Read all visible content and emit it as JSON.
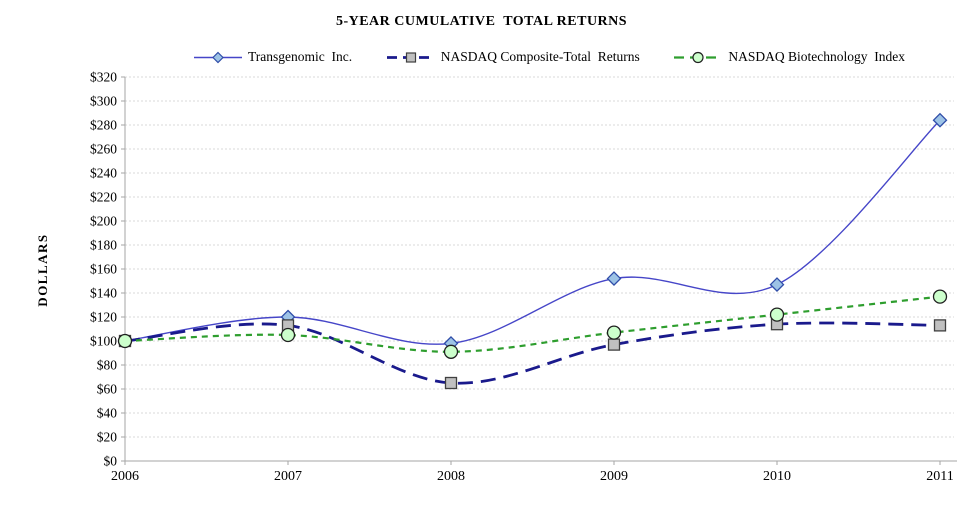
{
  "chart_data": {
    "type": "line",
    "title": "5-YEAR CUMULATIVE  TOTAL RETURNS",
    "ylabel": "DOLLARS",
    "xlabel": "",
    "categories": [
      "2006",
      "2007",
      "2008",
      "2009",
      "2010",
      "2011"
    ],
    "y_ticks": [
      "$0",
      "$20",
      "$40",
      "$60",
      "$80",
      "$100",
      "$120",
      "$140",
      "$160",
      "$180",
      "$200",
      "$220",
      "$240",
      "$260",
      "$280",
      "$300",
      "$320"
    ],
    "ylim": [
      0,
      320
    ],
    "y_tick_step": 20,
    "grid": "horizontal-dashed",
    "legend_position": "top",
    "smooth": true,
    "series": [
      {
        "name": "Transgenomic  Inc.",
        "values": [
          100,
          120,
          98,
          152,
          147,
          284
        ],
        "color": "#4646C8",
        "dash": "",
        "width": 1.4,
        "marker": "diamond",
        "marker_fill": "#9DC3E6",
        "marker_stroke": "#2F4DA8"
      },
      {
        "name": "NASDAQ Composite-Total  Returns",
        "values": [
          100,
          113,
          65,
          97,
          114,
          113
        ],
        "color": "#1A1A8C",
        "dash": "15 8",
        "width": 2.8,
        "marker": "square",
        "marker_fill": "#C0C0C0",
        "marker_stroke": "#404040"
      },
      {
        "name": "NASDAQ Biotechnology  Index",
        "values": [
          100,
          105,
          91,
          107,
          122,
          137
        ],
        "color": "#2E9E2E",
        "dash": "6 5",
        "width": 2.2,
        "marker": "circle",
        "marker_fill": "#CCFFCC",
        "marker_stroke": "#202020"
      }
    ],
    "axis_color": "#A6A6A6",
    "grid_color": "#D9D9D9",
    "text_color": "#000000"
  }
}
